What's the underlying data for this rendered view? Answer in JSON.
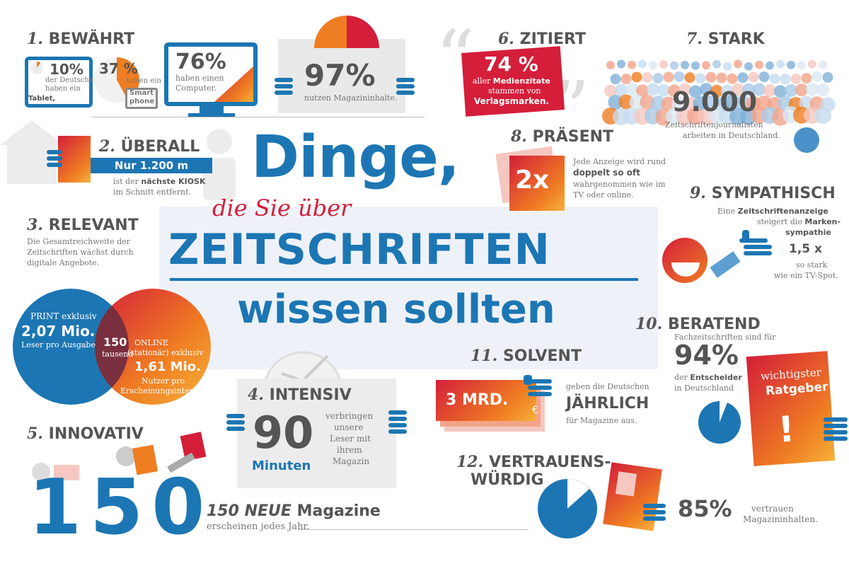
{
  "colors": {
    "blue": "#1c76b3",
    "red": "#d41e3a",
    "orange": "#ef7d22",
    "grey": "#666666",
    "lightblue_panel": "#eef2f8"
  },
  "title": {
    "line1": "Dinge,",
    "line2": "die Sie über",
    "line3": "ZEITSCHRIFTEN",
    "line4": "wissen sollten"
  },
  "s1": {
    "num": "1.",
    "heading": "BEWÄHRT",
    "tablet_pct": "10%",
    "tablet_text1": "der Deutschen",
    "tablet_text2": "haben ein",
    "tablet_text3": "Tablet,",
    "smartphone_pct": "37 %",
    "smartphone_text": "haben ein",
    "smartphone_label1": "Smart",
    "smartphone_label2": "phone",
    "computer_pct": "76%",
    "computer_text1": "haben einen",
    "computer_text2": "Computer."
  },
  "s97": {
    "value": "97%",
    "text": "nutzen Magazininhalte."
  },
  "s2": {
    "num": "2.",
    "heading": "ÜBERALL",
    "bar": "Nur 1.200 m",
    "text1": "ist der",
    "text_bold": "nächste KIOSK",
    "text2": "im Schnitt entfernt."
  },
  "s3": {
    "num": "3.",
    "heading": "RELEVANT",
    "text1": "Die Gesamtreichweite der",
    "text2": "Zeitschriften wächst durch",
    "text3": "digitale Angebote.",
    "print_label": "PRINT exklusiv",
    "print_value": "2,07 Mio.",
    "print_sub": "Leser pro Ausgabe",
    "overlap_value": "150",
    "overlap_sub": "tausend",
    "online_label1": "ONLINE",
    "online_label2": "(stationär) exklusiv",
    "online_value": "1,61 Mio.",
    "online_sub1": "Nutzer pro",
    "online_sub2": "Erscheinungsintervall"
  },
  "s4": {
    "num": "4.",
    "heading": "INTENSIV",
    "value": "90",
    "unit": "Minuten",
    "text1": "verbringen",
    "text2": "unsere",
    "text3": "Leser mit",
    "text4": "ihrem",
    "text5": "Magazin"
  },
  "s5": {
    "num": "5.",
    "heading": "INNOVATIV",
    "big": "150",
    "line_bold": "150 NEUE",
    "line_rest": "Magazine",
    "text": "erscheinen jedes Jahr."
  },
  "s6": {
    "num": "6.",
    "heading": "ZITIERT",
    "value": "74 %",
    "text1": "aller",
    "text1b": "Medienzitate",
    "text2": "stammen von",
    "text3": "Verlagsmarken."
  },
  "s7": {
    "num": "7.",
    "heading": "STARK",
    "value": "9.000",
    "text1": "Zeitschriftenjournalisten",
    "text2": "arbeiten in Deutschland."
  },
  "s8": {
    "num": "8.",
    "heading": "PRÄSENT",
    "value": "2x",
    "text1": "Jede Anzeige wird rund",
    "text_bold": "doppelt so oft",
    "text2": "wahrgenommen wie im",
    "text3": "TV oder online."
  },
  "s9": {
    "num": "9.",
    "heading": "SYMPATHISCH",
    "text1": "Eine",
    "text1b": "Zeitschriftenanzeige",
    "text2": "steigert die",
    "text2b": "Marken-",
    "text3": "sympathie",
    "value": "1,5 x",
    "text4": "so stark",
    "text5": "wie ein TV-Spot."
  },
  "s10": {
    "num": "10.",
    "heading": "BERATEND",
    "text1": "Fachzeitschriften sind für",
    "value": "94%",
    "text2": "der",
    "text2b": "Entscheider",
    "text3": "in Deutschland",
    "card1": "wichtigster",
    "card2": "Ratgeber",
    "card3": "!"
  },
  "s11": {
    "num": "11.",
    "heading": "SOLVENT",
    "money": "3 MRD.",
    "text1": "geben die Deutschen",
    "big": "JÄHRLICH",
    "text2": "für Magazine aus."
  },
  "s12": {
    "num": "12.",
    "heading1": "VERTRAUENS-",
    "heading2": "WÜRDIG",
    "value": "85%",
    "text1": "vertrauen",
    "text2": "Magazininhalten."
  },
  "quotes": {
    "open": "“",
    "close": "”"
  },
  "euro": "€"
}
